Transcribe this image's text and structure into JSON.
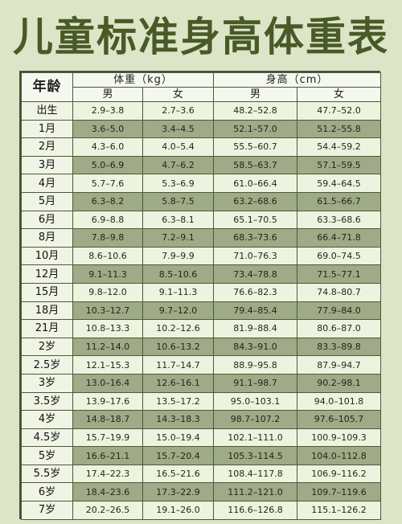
{
  "title": "儿童标准身高体重表",
  "headers": {
    "age": "年龄",
    "weight_group": "体重（kg）",
    "height_group": "身高（cm）",
    "male": "男",
    "female": "女"
  },
  "rows": [
    {
      "age": "出生",
      "w_m": "2.9–3.8",
      "w_f": "2.7–3.6",
      "h_m": "48.2–52.8",
      "h_f": "47.7–52.0"
    },
    {
      "age": "1月",
      "w_m": "3.6–5.0",
      "w_f": "3.4–4.5",
      "h_m": "52.1–57.0",
      "h_f": "51.2–55.8"
    },
    {
      "age": "2月",
      "w_m": "4.3–6.0",
      "w_f": "4.0–5.4",
      "h_m": "55.5–60.7",
      "h_f": "54.4–59.2"
    },
    {
      "age": "3月",
      "w_m": "5.0–6.9",
      "w_f": "4.7–6.2",
      "h_m": "58.5–63.7",
      "h_f": "57.1–59.5"
    },
    {
      "age": "4月",
      "w_m": "5.7–7.6",
      "w_f": "5.3–6.9",
      "h_m": "61.0–66.4",
      "h_f": "59.4–64.5"
    },
    {
      "age": "5月",
      "w_m": "6.3–8.2",
      "w_f": "5.8–7.5",
      "h_m": "63.2–68.6",
      "h_f": "61.5–66.7"
    },
    {
      "age": "6月",
      "w_m": "6.9–8.8",
      "w_f": "6.3–8.1",
      "h_m": "65.1–70.5",
      "h_f": "63.3–68.6"
    },
    {
      "age": "8月",
      "w_m": "7.8–9.8",
      "w_f": "7.2–9.1",
      "h_m": "68.3–73.6",
      "h_f": "66.4–71.8"
    },
    {
      "age": "10月",
      "w_m": "8.6–10.6",
      "w_f": "7.9–9.9",
      "h_m": "71.0–76.3",
      "h_f": "69.0–74.5"
    },
    {
      "age": "12月",
      "w_m": "9.1–11.3",
      "w_f": "8.5–10.6",
      "h_m": "73.4–78.8",
      "h_f": "71.5–77.1"
    },
    {
      "age": "15月",
      "w_m": "9.8–12.0",
      "w_f": "9.1–11.3",
      "h_m": "76.6–82.3",
      "h_f": "74.8–80.7"
    },
    {
      "age": "18月",
      "w_m": "10.3–12.7",
      "w_f": "9.7–12.0",
      "h_m": "79.4–85.4",
      "h_f": "77.9–84.0"
    },
    {
      "age": "21月",
      "w_m": "10.8–13.3",
      "w_f": "10.2–12.6",
      "h_m": "81.9–88.4",
      "h_f": "80.6–87.0"
    },
    {
      "age": "2岁",
      "w_m": "11.2–14.0",
      "w_f": "10.6–13.2",
      "h_m": "84.3–91.0",
      "h_f": "83.3–89.8"
    },
    {
      "age": "2.5岁",
      "w_m": "12.1–15.3",
      "w_f": "11.7–14.7",
      "h_m": "88.9–95.8",
      "h_f": "87.9–94.7"
    },
    {
      "age": "3岁",
      "w_m": "13.0–16.4",
      "w_f": "12.6–16.1",
      "h_m": "91.1–98.7",
      "h_f": "90.2–98.1"
    },
    {
      "age": "3.5岁",
      "w_m": "13.9–17.6",
      "w_f": "13.5–17.2",
      "h_m": "95.0–103.1",
      "h_f": "94.0–101.8"
    },
    {
      "age": "4岁",
      "w_m": "14.8–18.7",
      "w_f": "14.3–18.3",
      "h_m": "98.7–107.2",
      "h_f": "97.6–105.7"
    },
    {
      "age": "4.5岁",
      "w_m": "15.7–19.9",
      "w_f": "15.0–19.4",
      "h_m": "102.1–111.0",
      "h_f": "100.9–109.3"
    },
    {
      "age": "5岁",
      "w_m": "16.6–21.1",
      "w_f": "15.7–20.4",
      "h_m": "105.3–114.5",
      "h_f": "104.0–112.8"
    },
    {
      "age": "5.5岁",
      "w_m": "17.4–22.3",
      "w_f": "16.5–21.6",
      "h_m": "108.4–117.8",
      "h_f": "106.9–116.2"
    },
    {
      "age": "6岁",
      "w_m": "18.4–23.6",
      "w_f": "17.3–22.9",
      "h_m": "111.2–121.0",
      "h_f": "109.7–119.6"
    },
    {
      "age": "7岁",
      "w_m": "20.2–26.5",
      "w_f": "19.1–26.0",
      "h_m": "116.6–126.8",
      "h_f": "115.1–126.2"
    }
  ]
}
